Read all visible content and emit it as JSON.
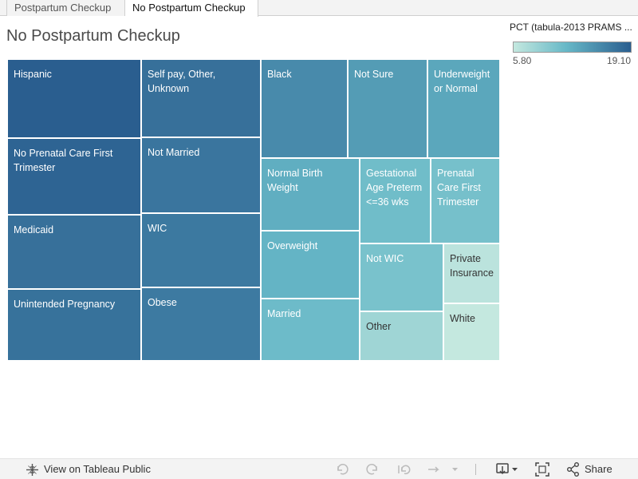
{
  "tabs": [
    {
      "label": "Postpartum Checkup"
    },
    {
      "label": "No Postpartum Checkup"
    }
  ],
  "title": "No Postpartum Checkup",
  "legend": {
    "title": "PCT (tabula-2013 PRAMS ...",
    "min_label": "5.80",
    "max_label": "19.10"
  },
  "chart_data": {
    "type": "treemap",
    "measure": "PCT (tabula-2013 PRAMS ...",
    "color_range": [
      5.8,
      19.1
    ],
    "color_low": "#c4e8df",
    "color_high": "#2a5e8f",
    "items": [
      {
        "label": "Hispanic",
        "value": 19.1
      },
      {
        "label": "No Prenatal Care First Trimester",
        "value": 18.6
      },
      {
        "label": "Medicaid",
        "value": 17.6
      },
      {
        "label": "Unintended Pregnancy",
        "value": 17.5
      },
      {
        "label": "Self pay, Other, Unknown",
        "value": 17.6
      },
      {
        "label": "Not Married",
        "value": 17.2
      },
      {
        "label": "WIC",
        "value": 16.9
      },
      {
        "label": "Obese",
        "value": 16.8
      },
      {
        "label": "Black",
        "value": 15.5
      },
      {
        "label": "Not Sure",
        "value": 14.1
      },
      {
        "label": "Underweight or Normal",
        "value": 13.2
      },
      {
        "label": "Normal Birth Weight",
        "value": 12.6
      },
      {
        "label": "Overweight",
        "value": 12.1
      },
      {
        "label": "Married",
        "value": 11.4
      },
      {
        "label": "Gestational Age Preterm <=36 wks",
        "value": 11.2
      },
      {
        "label": "Prenatal Care First Trimester",
        "value": 10.8
      },
      {
        "label": "Not WIC",
        "value": 10.6
      },
      {
        "label": "Other",
        "value": 8.2
      },
      {
        "label": "Private Insurance",
        "value": 6.4
      },
      {
        "label": "White",
        "value": 5.8
      }
    ]
  },
  "footer": {
    "view_label": "View on Tableau Public",
    "share_label": "Share"
  }
}
